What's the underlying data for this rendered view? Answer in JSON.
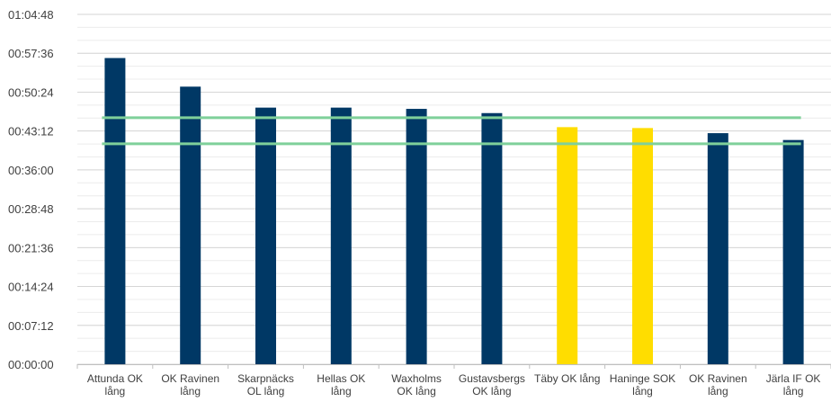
{
  "chart_data": {
    "type": "bar",
    "categories": [
      [
        "Attunda OK",
        "lång"
      ],
      [
        "OK Ravinen",
        "lång"
      ],
      [
        "Skarpnäcks",
        "OL lång"
      ],
      [
        "Hellas OK",
        "lång"
      ],
      [
        "Waxholms",
        "OK lång"
      ],
      [
        "Gustavsbergs",
        "OK lång"
      ],
      [
        "Täby OK lång"
      ],
      [
        "Haninge SOK",
        "lång"
      ],
      [
        "OK Ravinen",
        "lång"
      ],
      [
        "Järla IF OK",
        "lång"
      ]
    ],
    "values_seconds": [
      3403,
      3085,
      2852,
      2852,
      2838,
      2791,
      2635,
      2625,
      2568,
      2492
    ],
    "bar_colors": [
      "#003865",
      "#003865",
      "#003865",
      "#003865",
      "#003865",
      "#003865",
      "#FFDD00",
      "#FFDD00",
      "#003865",
      "#003865"
    ],
    "reference_lines_seconds": [
      2740,
      2450
    ],
    "reference_line_color": "#7FD09A",
    "y_ticks": [
      "00:00:00",
      "00:07:12",
      "00:14:24",
      "00:21:36",
      "00:28:48",
      "00:36:00",
      "00:43:12",
      "00:50:24",
      "00:57:36",
      "01:04:48"
    ],
    "y_tick_values_seconds": [
      0,
      432,
      864,
      1296,
      1728,
      2160,
      2592,
      3024,
      3456,
      3888
    ],
    "ylim_seconds": [
      0,
      3888
    ],
    "minor_grid_step_seconds": 144,
    "grid": true,
    "title": "",
    "xlabel": "",
    "ylabel": ""
  }
}
